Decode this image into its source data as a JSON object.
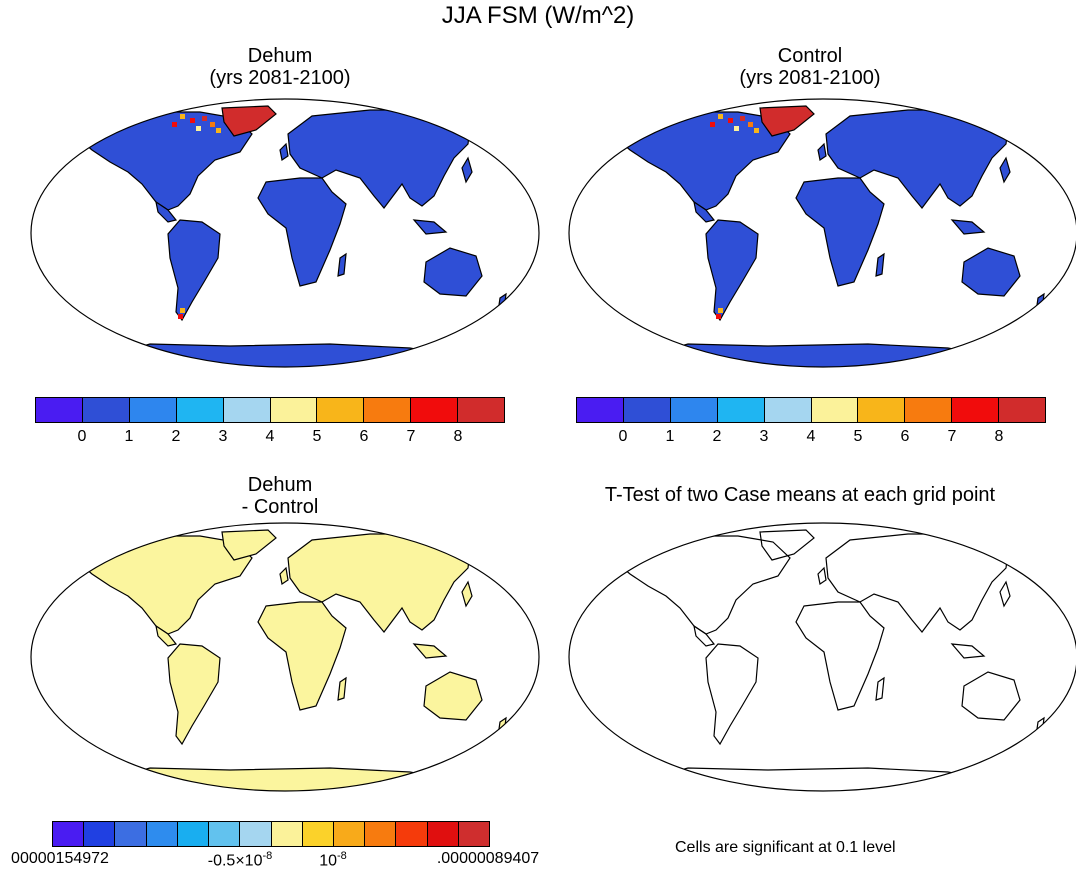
{
  "figure_title": "JJA FSM (W/m^2)",
  "panels": {
    "dehum": {
      "title_line1": "Dehum",
      "title_line2": "(yrs 2081-2100)"
    },
    "control": {
      "title_line1": "Control",
      "title_line2": "(yrs 2081-2100)"
    },
    "diff": {
      "title_line1": "Dehum",
      "title_line2": "- Control"
    },
    "ttest": {
      "title": "T-Test of two Case means at each grid point",
      "note": "Cells are significant at 0.1 level"
    }
  },
  "colorbar_top": {
    "colors": [
      "#4a1cf2",
      "#2f4fd6",
      "#2e86ee",
      "#1fb5f2",
      "#a5d6f0",
      "#fbf29a",
      "#f8b51a",
      "#f77b0f",
      "#f10c0c",
      "#d12c2c"
    ],
    "labels": [
      "0",
      "1",
      "2",
      "3",
      "4",
      "5",
      "6",
      "7",
      "8"
    ]
  },
  "colorbar_diff": {
    "colors": [
      "#4a1cf2",
      "#2040e2",
      "#3c6ee2",
      "#2e8cee",
      "#19aef0",
      "#62c2ee",
      "#a5d6f0",
      "#fbf29a",
      "#fbd22a",
      "#f8aa1a",
      "#f77b0f",
      "#f53b0b",
      "#e00f0f",
      "#cf2e2e"
    ],
    "label_left": "00000154972",
    "label_mid_base": "-0.5×10",
    "label_mid_exp": "-8",
    "label_mid2_base": "10",
    "label_mid2_exp": "-8",
    "label_right": ".00000089407"
  },
  "map_colors": {
    "land_main": "#2f4fd6",
    "greenland": "#d12c2c",
    "diff_land": "#fbf59e"
  }
}
